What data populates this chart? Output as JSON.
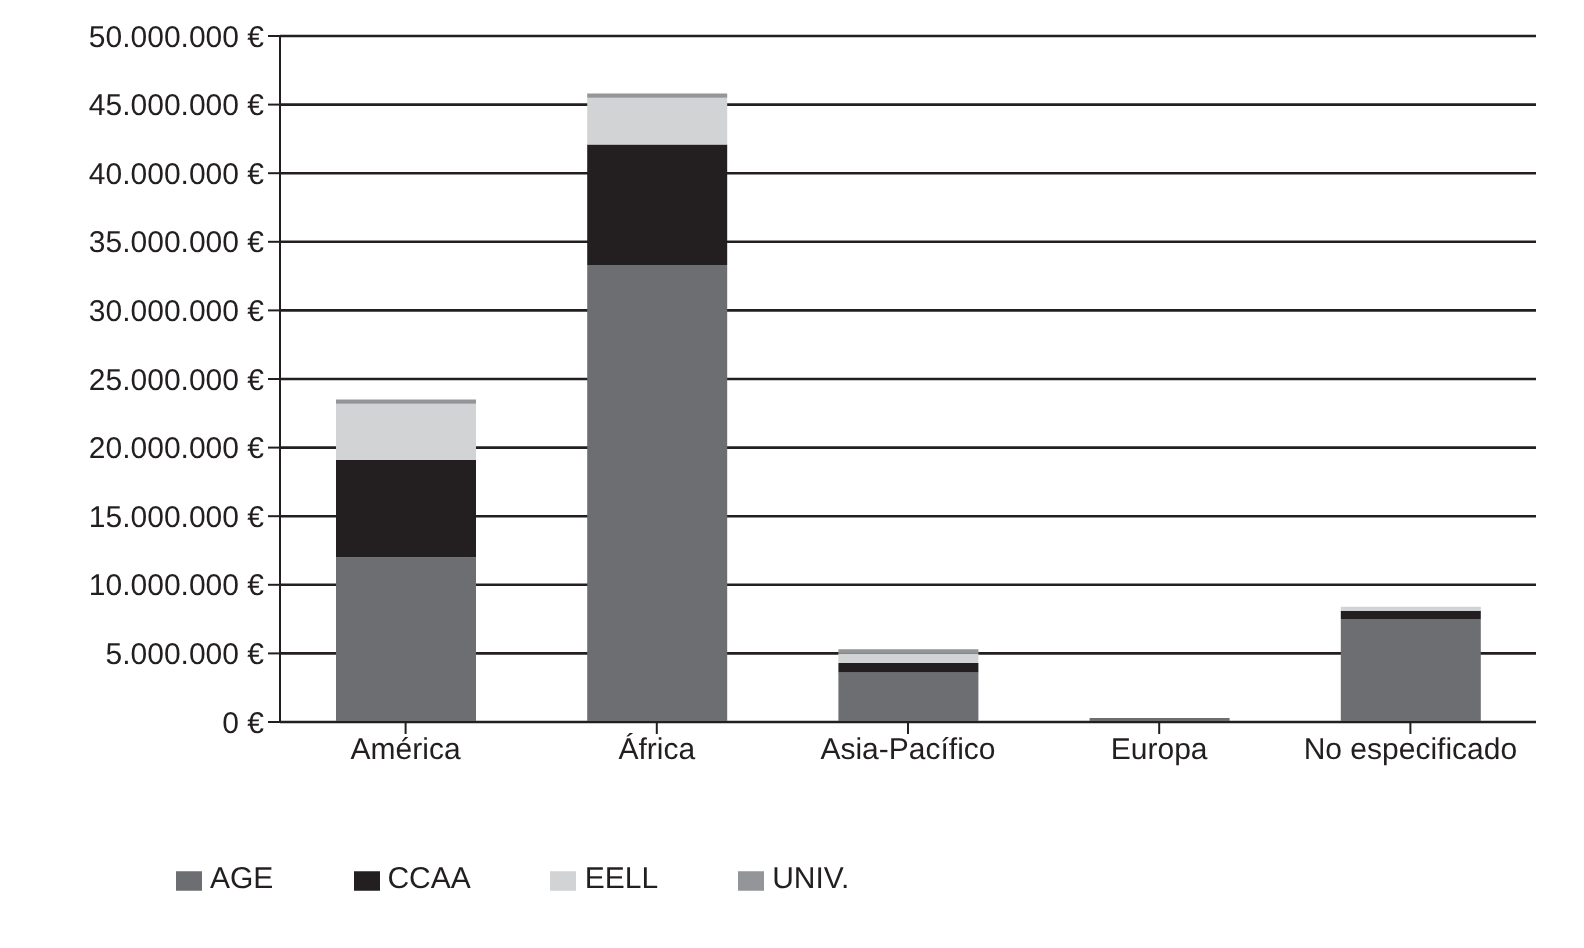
{
  "chart_data": {
    "type": "bar",
    "stacked": true,
    "categories": [
      "América",
      "África",
      "Asia-Pacífico",
      "Europa",
      "No especificado"
    ],
    "series": [
      {
        "name": "AGE",
        "color": "#6d6e71",
        "values": [
          12000000,
          33300000,
          3600000,
          300000,
          7500000
        ]
      },
      {
        "name": "CCAA",
        "color": "#231f20",
        "values": [
          7100000,
          8800000,
          700000,
          0,
          600000
        ]
      },
      {
        "name": "EELL",
        "color": "#d1d3d4",
        "values": [
          4100000,
          3400000,
          700000,
          0,
          300000
        ]
      },
      {
        "name": "UNIV.",
        "color": "#939598",
        "values": [
          300000,
          300000,
          300000,
          0,
          0
        ]
      }
    ],
    "ylim": [
      0,
      50000000
    ],
    "yticks": [
      {
        "value": 0,
        "label": "0 €"
      },
      {
        "value": 5000000,
        "label": "5.000.000 €"
      },
      {
        "value": 10000000,
        "label": "10.000.000 €"
      },
      {
        "value": 15000000,
        "label": "15.000.000 €"
      },
      {
        "value": 20000000,
        "label": "20.000.000 €"
      },
      {
        "value": 25000000,
        "label": "25.000.000 €"
      },
      {
        "value": 30000000,
        "label": "30.000.000 €"
      },
      {
        "value": 35000000,
        "label": "35.000.000 €"
      },
      {
        "value": 40000000,
        "label": "40.000.000 €"
      },
      {
        "value": 45000000,
        "label": "45.000.000 €"
      },
      {
        "value": 50000000,
        "label": "50.000.000 €"
      }
    ],
    "grid": "y",
    "legend": "bottom"
  }
}
